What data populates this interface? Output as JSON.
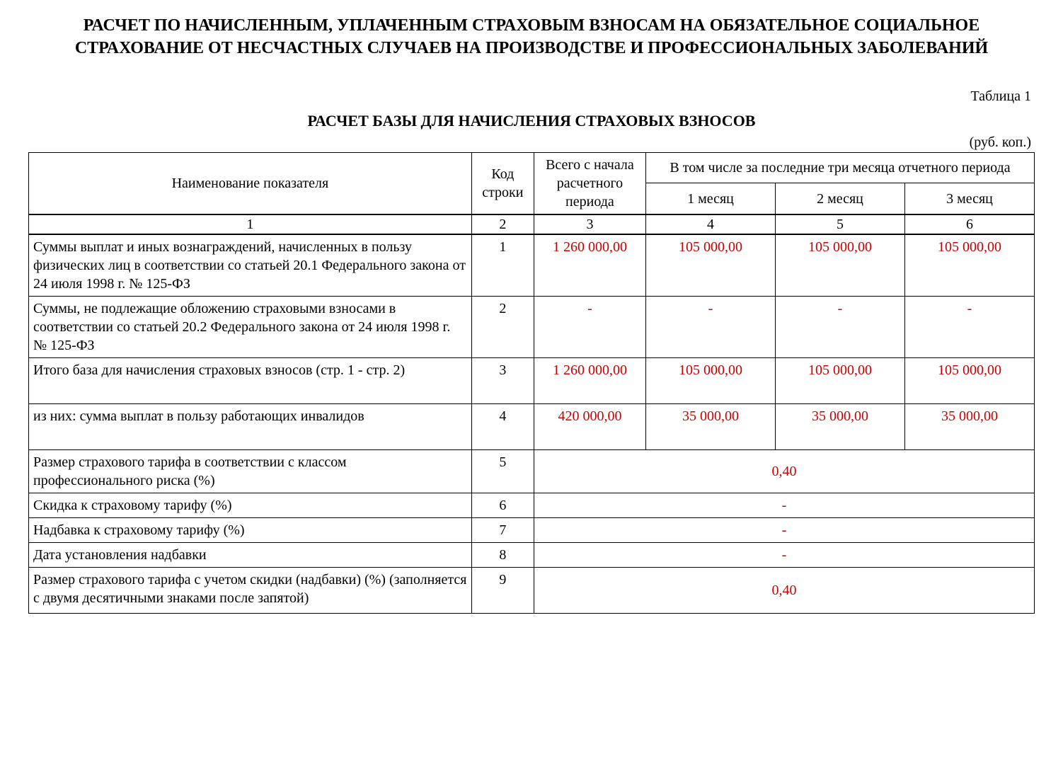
{
  "mainTitle": "РАСЧЕТ ПО НАЧИСЛЕННЫМ, УПЛАЧЕННЫМ СТРАХОВЫМ ВЗНОСАМ НА ОБЯЗАТЕЛЬНОЕ СОЦИАЛЬНОЕ СТРАХОВАНИЕ ОТ НЕСЧАСТНЫХ СЛУЧАЕВ НА ПРОИЗВОДСТВЕ И ПРОФЕССИОНАЛЬНЫХ ЗАБОЛЕВАНИЙ",
  "tableLabel": "Таблица 1",
  "subtitle": "РАСЧЕТ БАЗЫ ДЛЯ НАЧИСЛЕНИЯ СТРАХОВЫХ ВЗНОСОВ",
  "unitsLabel": "(руб. коп.)",
  "colors": {
    "text": "#000000",
    "value": "#cc0000",
    "background": "#ffffff",
    "border": "#000000"
  },
  "typography": {
    "fontFamily": "Times New Roman",
    "titleFontSize": 24,
    "subtitleFontSize": 22,
    "bodyFontSize": 20
  },
  "header": {
    "name": "Наименование показателя",
    "code": "Код строки",
    "total": "Всего с начала расчетного периода",
    "lastThree": "В том числе за последние три месяца отчетного периода",
    "m1": "1 месяц",
    "m2": "2 месяц",
    "m3": "3 месяц"
  },
  "numRow": {
    "c1": "1",
    "c2": "2",
    "c3": "3",
    "c4": "4",
    "c5": "5",
    "c6": "6"
  },
  "rows": {
    "r1": {
      "desc": "Суммы выплат и иных вознаграждений, начисленных в пользу физических лиц в соответствии со статьей 20.1 Федерального закона от 24 июля 1998 г. № 125-ФЗ",
      "code": "1",
      "total": "1 260 000,00",
      "m1": "105 000,00",
      "m2": "105 000,00",
      "m3": "105 000,00"
    },
    "r2": {
      "desc": "Суммы, не подлежащие обложению страховыми взносами в соответствии со статьей 20.2 Федерального закона от 24 июля 1998 г. № 125-ФЗ",
      "code": "2",
      "total": "-",
      "m1": "-",
      "m2": "-",
      "m3": "-"
    },
    "r3": {
      "desc": "Итого база для начисления страховых взносов (стр. 1 - стр. 2)",
      "code": "3",
      "total": "1 260 000,00",
      "m1": "105 000,00",
      "m2": "105 000,00",
      "m3": "105 000,00"
    },
    "r4": {
      "desc": "из них:\nсумма выплат в пользу работающих инвалидов",
      "code": "4",
      "total": "420 000,00",
      "m1": "35 000,00",
      "m2": "35 000,00",
      "m3": "35 000,00"
    },
    "r5": {
      "desc": "Размер страхового тарифа в соответствии с классом профессионального риска (%)",
      "code": "5",
      "val": "0,40"
    },
    "r6": {
      "desc": "Скидка к страховому тарифу (%)",
      "code": "6",
      "val": "-"
    },
    "r7": {
      "desc": "Надбавка к страховому тарифу (%)",
      "code": "7",
      "val": "-"
    },
    "r8": {
      "desc": "Дата установления надбавки",
      "code": "8",
      "val": "-"
    },
    "r9": {
      "desc": "Размер страхового тарифа с учетом скидки (надбавки) (%) (заполняется с двумя десятичными знаками после запятой)",
      "code": "9",
      "val": "0,40"
    }
  }
}
